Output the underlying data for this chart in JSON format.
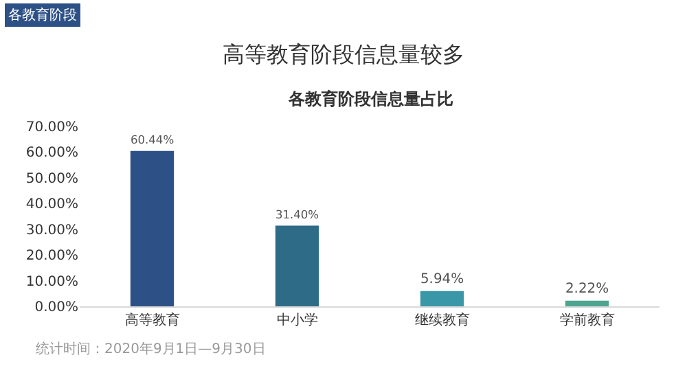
{
  "chart_data": {
    "type": "bar",
    "title": "高等教育阶段信息量较多",
    "subtitle": "各教育阶段信息量占比",
    "categories": [
      "高等教育",
      "中小学",
      "继续教育",
      "学前教育"
    ],
    "values": [
      60.44,
      31.4,
      5.94,
      2.22
    ],
    "colors": [
      "#2d5086",
      "#2e6b87",
      "#3a97a7",
      "#4ea58f"
    ],
    "value_labels": [
      "60.44%",
      "31.40%",
      "5.94%",
      "2.22%"
    ],
    "ylim": [
      0,
      70
    ],
    "yticks": [
      {
        "value": 0,
        "label": "0.00%"
      },
      {
        "value": 10,
        "label": "10.00%"
      },
      {
        "value": 20,
        "label": "20.00%"
      },
      {
        "value": 30,
        "label": "30.00%"
      },
      {
        "value": 40,
        "label": "40.00%"
      },
      {
        "value": 50,
        "label": "50.00%"
      },
      {
        "value": 60,
        "label": "60.00%"
      },
      {
        "value": 70,
        "label": "70.00%"
      }
    ],
    "annotations": [
      "各教育阶段",
      "统计时间：2020年9月1日—9月30日"
    ]
  }
}
